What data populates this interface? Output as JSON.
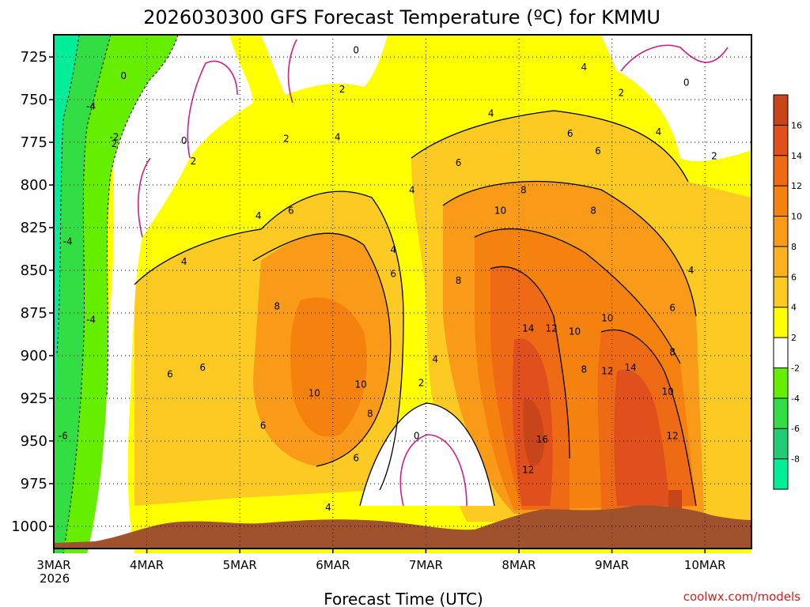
{
  "chart_data": {
    "type": "heatmap",
    "title": "2026030300 GFS Forecast Temperature (ºC) for KMMU",
    "xlabel": "Forecast Time (UTC)",
    "ylabel": "",
    "x_ticks": [
      "3MAR",
      "4MAR",
      "5MAR",
      "6MAR",
      "7MAR",
      "8MAR",
      "9MAR",
      "10MAR"
    ],
    "x_tick_days": [
      0,
      1,
      2,
      3,
      4,
      5,
      6,
      7
    ],
    "x_subtitle": "2026",
    "xlim": [
      0,
      7.5
    ],
    "y_ticks": [
      "725",
      "750",
      "775",
      "800",
      "825",
      "850",
      "875",
      "900",
      "925",
      "950",
      "975",
      "1000"
    ],
    "ylim": [
      712,
      1013
    ],
    "colorbar": {
      "levels": [
        "16",
        "14",
        "12",
        "10",
        "8",
        "6",
        "4",
        "2",
        "-2",
        "-4",
        "-6",
        "-8"
      ],
      "colors": [
        "#c8441b",
        "#e0501c",
        "#ee6a14",
        "#f5820e",
        "#f99a18",
        "#fbb21e",
        "#fcca22",
        "#ffff00",
        "#ffffff",
        "#66ee00",
        "#33dd44",
        "#22cc77",
        "#00ee99"
      ]
    },
    "contour_labels": [
      {
        "t": "0",
        "x": 0.75,
        "y": 736
      },
      {
        "t": "0",
        "x": 3.25,
        "y": 721
      },
      {
        "t": "0",
        "x": 6.8,
        "y": 740
      },
      {
        "t": "0",
        "x": 1.4,
        "y": 774
      },
      {
        "t": "0",
        "x": 3.9,
        "y": 947
      },
      {
        "t": "2",
        "x": 3.1,
        "y": 744
      },
      {
        "t": "2",
        "x": 2.5,
        "y": 773
      },
      {
        "t": "2",
        "x": 1.5,
        "y": 786
      },
      {
        "t": "2",
        "x": 6.1,
        "y": 746
      },
      {
        "t": "2",
        "x": 7.1,
        "y": 783
      },
      {
        "t": "2",
        "x": 3.95,
        "y": 916
      },
      {
        "t": "2",
        "x": 0.65,
        "y": 776
      },
      {
        "t": "4",
        "x": 3.05,
        "y": 772
      },
      {
        "t": "4",
        "x": 4.7,
        "y": 758
      },
      {
        "t": "4",
        "x": 5.7,
        "y": 731
      },
      {
        "t": "4",
        "x": 6.5,
        "y": 769
      },
      {
        "t": "4",
        "x": 3.85,
        "y": 803
      },
      {
        "t": "4",
        "x": 2.2,
        "y": 818
      },
      {
        "t": "4",
        "x": 3.65,
        "y": 838
      },
      {
        "t": "4",
        "x": 1.4,
        "y": 845
      },
      {
        "t": "4",
        "x": 4.1,
        "y": 902
      },
      {
        "t": "4",
        "x": 6.85,
        "y": 850
      },
      {
        "t": "4",
        "x": 2.95,
        "y": 989
      },
      {
        "t": "6",
        "x": 4.35,
        "y": 787
      },
      {
        "t": "6",
        "x": 5.55,
        "y": 770
      },
      {
        "t": "6",
        "x": 5.85,
        "y": 780
      },
      {
        "t": "6",
        "x": 2.55,
        "y": 815
      },
      {
        "t": "6",
        "x": 3.65,
        "y": 852
      },
      {
        "t": "6",
        "x": 6.65,
        "y": 872
      },
      {
        "t": "6",
        "x": 1.25,
        "y": 911
      },
      {
        "t": "6",
        "x": 1.6,
        "y": 907
      },
      {
        "t": "6",
        "x": 2.25,
        "y": 941
      },
      {
        "t": "6",
        "x": 3.25,
        "y": 960
      },
      {
        "t": "8",
        "x": 5.05,
        "y": 803
      },
      {
        "t": "8",
        "x": 5.8,
        "y": 815
      },
      {
        "t": "8",
        "x": 2.4,
        "y": 871
      },
      {
        "t": "8",
        "x": 4.35,
        "y": 856
      },
      {
        "t": "8",
        "x": 5.7,
        "y": 908
      },
      {
        "t": "8",
        "x": 6.65,
        "y": 898
      },
      {
        "t": "8",
        "x": 3.4,
        "y": 934
      },
      {
        "t": "10",
        "x": 4.8,
        "y": 815
      },
      {
        "t": "10",
        "x": 5.6,
        "y": 886
      },
      {
        "t": "10",
        "x": 5.95,
        "y": 878
      },
      {
        "t": "10",
        "x": 2.8,
        "y": 922
      },
      {
        "t": "10",
        "x": 3.3,
        "y": 917
      },
      {
        "t": "10",
        "x": 6.6,
        "y": 921
      },
      {
        "t": "12",
        "x": 5.35,
        "y": 884
      },
      {
        "t": "12",
        "x": 5.95,
        "y": 909
      },
      {
        "t": "12",
        "x": 6.65,
        "y": 947
      },
      {
        "t": "12",
        "x": 5.1,
        "y": 967
      },
      {
        "t": "14",
        "x": 5.1,
        "y": 884
      },
      {
        "t": "14",
        "x": 6.2,
        "y": 907
      },
      {
        "t": "16",
        "x": 5.25,
        "y": 949
      },
      {
        "t": "-2",
        "x": 0.65,
        "y": 772
      },
      {
        "t": "-4",
        "x": 0.4,
        "y": 754
      },
      {
        "t": "-4",
        "x": 0.15,
        "y": 833
      },
      {
        "t": "-4",
        "x": 0.4,
        "y": 879
      },
      {
        "t": "-6",
        "x": 0.1,
        "y": 947
      }
    ],
    "credit": "coolwx.com/models"
  }
}
